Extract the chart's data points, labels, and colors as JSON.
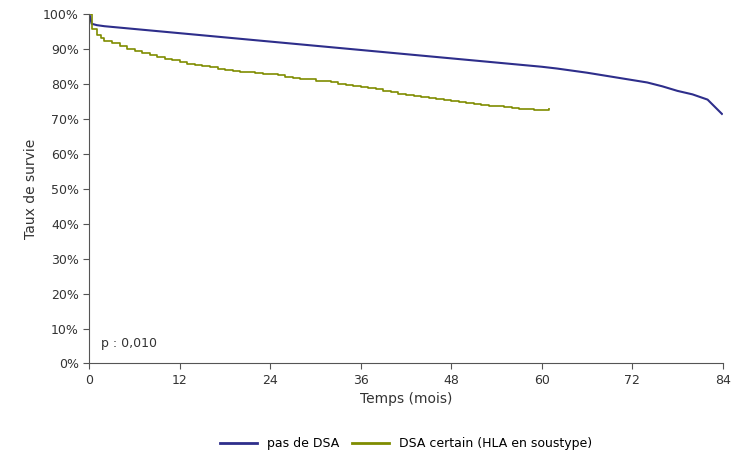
{
  "xlabel": "Temps (mois)",
  "ylabel": "Taux de survie",
  "xlim": [
    0,
    84
  ],
  "ylim": [
    0,
    1.0
  ],
  "xticks": [
    0,
    12,
    24,
    36,
    48,
    60,
    72,
    84
  ],
  "yticks": [
    0.0,
    0.1,
    0.2,
    0.3,
    0.4,
    0.5,
    0.6,
    0.7,
    0.8,
    0.9,
    1.0
  ],
  "ytick_labels": [
    "0%",
    "10%",
    "20%",
    "30%",
    "40%",
    "50%",
    "60%",
    "70%",
    "80%",
    "90%",
    "100%"
  ],
  "annotation": "p : 0,010",
  "line1_color": "#2e2e8b",
  "line2_color": "#7f8c00",
  "legend_labels": [
    "pas de DSA",
    "DSA certain (HLA en soustype)"
  ],
  "line1_x": [
    0,
    0.3,
    1,
    2,
    3,
    4,
    5,
    6,
    7,
    8,
    9,
    10,
    11,
    12,
    13,
    14,
    15,
    16,
    17,
    18,
    19,
    20,
    21,
    22,
    23,
    24,
    25,
    26,
    27,
    28,
    29,
    30,
    31,
    32,
    33,
    34,
    35,
    36,
    37,
    38,
    39,
    40,
    41,
    42,
    43,
    44,
    45,
    46,
    47,
    48,
    49,
    50,
    51,
    52,
    53,
    54,
    55,
    56,
    57,
    58,
    59,
    60,
    62,
    64,
    66,
    68,
    70,
    72,
    74,
    76,
    78,
    80,
    82,
    84
  ],
  "line1_y": [
    1.0,
    0.972,
    0.968,
    0.965,
    0.963,
    0.961,
    0.959,
    0.957,
    0.955,
    0.953,
    0.951,
    0.949,
    0.947,
    0.945,
    0.943,
    0.941,
    0.939,
    0.937,
    0.935,
    0.933,
    0.931,
    0.929,
    0.927,
    0.925,
    0.923,
    0.921,
    0.919,
    0.917,
    0.915,
    0.913,
    0.911,
    0.909,
    0.907,
    0.905,
    0.903,
    0.901,
    0.899,
    0.897,
    0.895,
    0.893,
    0.891,
    0.889,
    0.887,
    0.885,
    0.883,
    0.881,
    0.879,
    0.877,
    0.875,
    0.873,
    0.871,
    0.869,
    0.867,
    0.865,
    0.863,
    0.861,
    0.859,
    0.857,
    0.855,
    0.853,
    0.851,
    0.849,
    0.844,
    0.838,
    0.832,
    0.825,
    0.818,
    0.811,
    0.804,
    0.793,
    0.78,
    0.77,
    0.755,
    0.712
  ],
  "line2_x": [
    0,
    0.3,
    1,
    1.5,
    2,
    3,
    4,
    5,
    6,
    7,
    8,
    9,
    10,
    11,
    12,
    13,
    14,
    15,
    16,
    17,
    18,
    19,
    20,
    21,
    22,
    23,
    24,
    25,
    26,
    27,
    28,
    30,
    32,
    33,
    34,
    35,
    36,
    37,
    38,
    39,
    40,
    41,
    42,
    43,
    44,
    45,
    46,
    47,
    48,
    49,
    50,
    51,
    52,
    53,
    54,
    55,
    56,
    57,
    58,
    59,
    60,
    61
  ],
  "line2_y": [
    1.0,
    0.958,
    0.94,
    0.932,
    0.924,
    0.916,
    0.908,
    0.901,
    0.894,
    0.888,
    0.882,
    0.877,
    0.872,
    0.867,
    0.862,
    0.858,
    0.854,
    0.85,
    0.847,
    0.844,
    0.841,
    0.838,
    0.835,
    0.833,
    0.831,
    0.829,
    0.827,
    0.825,
    0.821,
    0.817,
    0.813,
    0.808,
    0.804,
    0.801,
    0.798,
    0.795,
    0.792,
    0.789,
    0.785,
    0.78,
    0.776,
    0.772,
    0.769,
    0.766,
    0.763,
    0.76,
    0.757,
    0.754,
    0.752,
    0.749,
    0.746,
    0.743,
    0.741,
    0.738,
    0.736,
    0.734,
    0.731,
    0.729,
    0.728,
    0.726,
    0.724,
    0.73
  ]
}
